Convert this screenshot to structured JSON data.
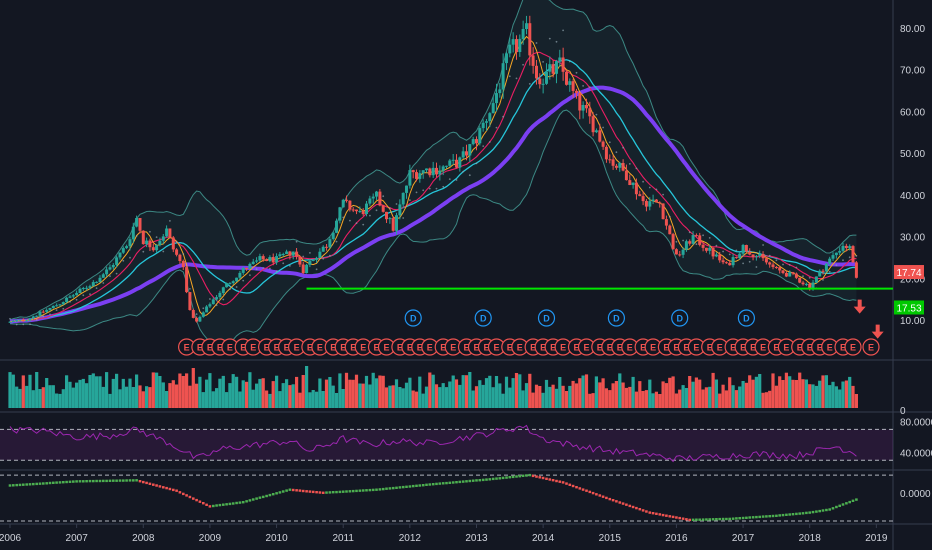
{
  "chart_data": {
    "type": "candlestick",
    "panes": {
      "price": {
        "ylim": [
          0,
          85
        ],
        "y_ticks": [
          "80.00",
          "70.00",
          "60.00",
          "50.00",
          "40.00",
          "30.00",
          "20.00",
          "10.00"
        ],
        "last_price_label": "17.74",
        "support_price_label": "17.53",
        "support_level": 17.53,
        "last_price": 17.74,
        "colors": {
          "up": "#26a69a",
          "down": "#ef5350",
          "support": "#00e600",
          "ma_long": "#7b3ff2",
          "ma_mid": "#26c6da",
          "ma_pink": "#e91e63",
          "ma_fast": "#f9a825",
          "band": "#4db6ac",
          "dots": "#90a4ae"
        },
        "anchors_close": [
          [
            2006.0,
            9.5
          ],
          [
            2006.25,
            10.2
          ],
          [
            2006.5,
            12.0
          ],
          [
            2006.75,
            14.0
          ],
          [
            2007.0,
            16.5
          ],
          [
            2007.25,
            19.0
          ],
          [
            2007.5,
            22.5
          ],
          [
            2007.75,
            28.0
          ],
          [
            2007.9,
            34.5
          ],
          [
            2008.0,
            29.0
          ],
          [
            2008.15,
            27.5
          ],
          [
            2008.35,
            31.5
          ],
          [
            2008.45,
            27.0
          ],
          [
            2008.6,
            22.5
          ],
          [
            2008.7,
            12.0
          ],
          [
            2008.8,
            9.5
          ],
          [
            2009.0,
            14.0
          ],
          [
            2009.25,
            18.5
          ],
          [
            2009.5,
            22.0
          ],
          [
            2009.75,
            24.5
          ],
          [
            2010.0,
            24.5
          ],
          [
            2010.25,
            26.5
          ],
          [
            2010.4,
            22.0
          ],
          [
            2010.5,
            24.0
          ],
          [
            2010.75,
            28.0
          ],
          [
            2011.0,
            38.0
          ],
          [
            2011.25,
            35.5
          ],
          [
            2011.5,
            39.5
          ],
          [
            2011.75,
            32.0
          ],
          [
            2012.0,
            45.0
          ],
          [
            2012.25,
            46.0
          ],
          [
            2012.5,
            46.5
          ],
          [
            2012.75,
            48.0
          ],
          [
            2013.0,
            53.5
          ],
          [
            2013.25,
            62.0
          ],
          [
            2013.5,
            74.0
          ],
          [
            2013.75,
            78.5
          ],
          [
            2013.9,
            69.0
          ],
          [
            2014.0,
            68.0
          ],
          [
            2014.25,
            71.0
          ],
          [
            2014.5,
            62.5
          ],
          [
            2014.75,
            57.0
          ],
          [
            2015.0,
            48.5
          ],
          [
            2015.25,
            45.0
          ],
          [
            2015.5,
            38.5
          ],
          [
            2015.75,
            38.0
          ],
          [
            2016.0,
            25.0
          ],
          [
            2016.25,
            30.0
          ],
          [
            2016.5,
            26.5
          ],
          [
            2016.75,
            23.0
          ],
          [
            2017.0,
            27.5
          ],
          [
            2017.25,
            25.0
          ],
          [
            2017.5,
            22.0
          ],
          [
            2017.75,
            20.5
          ],
          [
            2018.0,
            18.0
          ],
          [
            2018.25,
            23.5
          ],
          [
            2018.5,
            28.0
          ],
          [
            2018.62,
            27.0
          ],
          [
            2018.72,
            17.7
          ]
        ],
        "earnings_markers": {
          "label": "E",
          "x": [
            2008.65,
            2008.85,
            2009.0,
            2009.15,
            2009.3,
            2009.5,
            2009.65,
            2009.85,
            2010.0,
            2010.15,
            2010.3,
            2010.5,
            2010.65,
            2010.85,
            2011.0,
            2011.15,
            2011.3,
            2011.5,
            2011.65,
            2011.85,
            2012.0,
            2012.15,
            2012.3,
            2012.5,
            2012.65,
            2012.85,
            2013.0,
            2013.15,
            2013.3,
            2013.5,
            2013.65,
            2013.85,
            2014.0,
            2014.15,
            2014.3,
            2014.5,
            2014.65,
            2014.85,
            2015.0,
            2015.15,
            2015.3,
            2015.5,
            2015.65,
            2015.85,
            2016.0,
            2016.15,
            2016.3,
            2016.5,
            2016.65,
            2016.85,
            2017.0,
            2017.15,
            2017.3,
            2017.5,
            2017.65,
            2017.85,
            2018.0,
            2018.15,
            2018.3,
            2018.5,
            2018.65,
            2018.92
          ]
        },
        "dividend_markers": {
          "label": "D",
          "x": [
            2012.05,
            2013.1,
            2014.05,
            2015.1,
            2016.05,
            2017.05
          ]
        }
      },
      "volume": {
        "ylim_label": "0"
      },
      "rsi": {
        "ylim": [
          20,
          90
        ],
        "y_ticks": [
          "80.0000",
          "40.0000"
        ],
        "bands": [
          70,
          30
        ],
        "color": "#9c27b0",
        "anchors": [
          [
            2006.0,
            70
          ],
          [
            2006.5,
            68
          ],
          [
            2007.0,
            60
          ],
          [
            2007.5,
            62
          ],
          [
            2007.9,
            70
          ],
          [
            2008.4,
            52
          ],
          [
            2008.8,
            32
          ],
          [
            2009.2,
            45
          ],
          [
            2009.7,
            50
          ],
          [
            2010.2,
            55
          ],
          [
            2010.5,
            42
          ],
          [
            2011.0,
            58
          ],
          [
            2011.4,
            50
          ],
          [
            2011.8,
            55
          ],
          [
            2012.3,
            52
          ],
          [
            2013.0,
            62
          ],
          [
            2013.7,
            74
          ],
          [
            2014.0,
            58
          ],
          [
            2014.4,
            50
          ],
          [
            2015.0,
            42
          ],
          [
            2015.5,
            38
          ],
          [
            2016.0,
            32
          ],
          [
            2016.6,
            35
          ],
          [
            2017.2,
            38
          ],
          [
            2017.8,
            36
          ],
          [
            2018.4,
            48
          ],
          [
            2018.72,
            38
          ]
        ]
      },
      "macd": {
        "ylim": [
          -14,
          10
        ],
        "y_ticks": [
          "0.0000"
        ],
        "anchors": [
          [
            2006.0,
            3.5
          ],
          [
            2007.0,
            5.5
          ],
          [
            2007.9,
            6.0
          ],
          [
            2008.5,
            1.0
          ],
          [
            2009.0,
            -6.5
          ],
          [
            2009.5,
            -4.5
          ],
          [
            2010.2,
            1.5
          ],
          [
            2010.7,
            0.0
          ],
          [
            2011.5,
            1.5
          ],
          [
            2012.3,
            4.0
          ],
          [
            2013.2,
            6.5
          ],
          [
            2013.8,
            8.5
          ],
          [
            2014.3,
            5.0
          ],
          [
            2015.0,
            -3.0
          ],
          [
            2015.6,
            -9.5
          ],
          [
            2016.2,
            -13.0
          ],
          [
            2016.8,
            -12.5
          ],
          [
            2017.5,
            -11.0
          ],
          [
            2018.0,
            -9.5
          ],
          [
            2018.3,
            -8.0
          ],
          [
            2018.72,
            -3.0
          ]
        ]
      }
    },
    "x_axis": {
      "labels": [
        "2006",
        "2007",
        "2008",
        "2009",
        "2010",
        "2011",
        "2012",
        "2013",
        "2014",
        "2015",
        "2016",
        "2017",
        "2018",
        "2019"
      ],
      "range": [
        2006.0,
        2019.4
      ]
    }
  }
}
